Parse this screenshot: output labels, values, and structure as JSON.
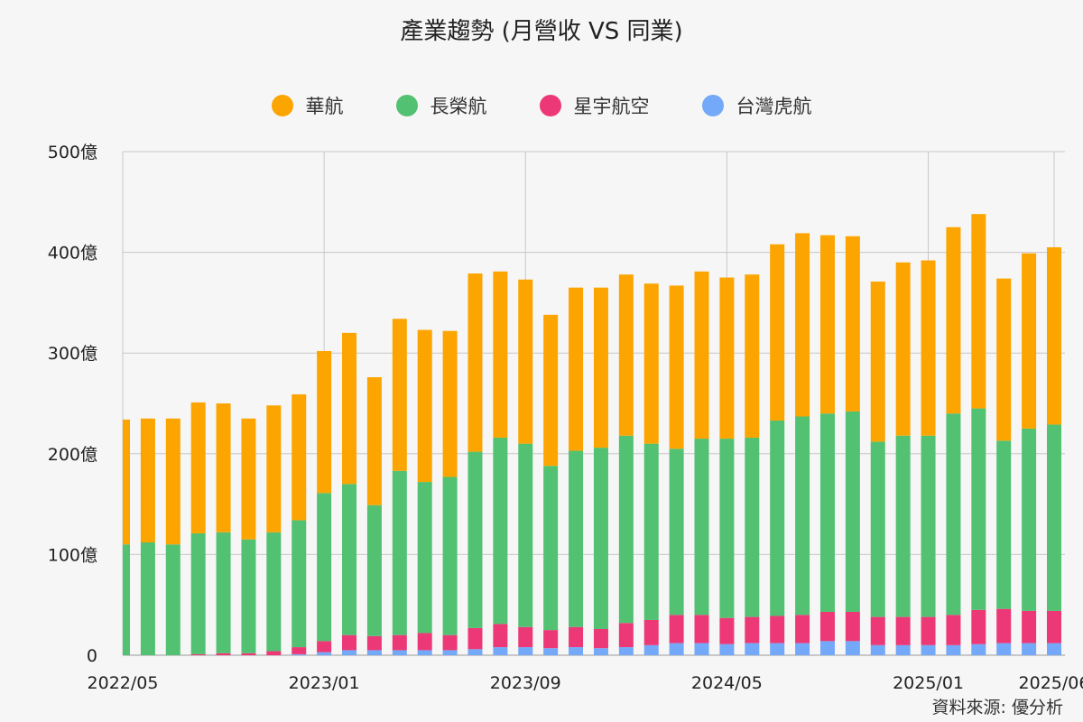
{
  "title": "產業趨勢 (月營收 VS 同業)",
  "source": "資料來源: 優分析",
  "chart_data": {
    "type": "bar",
    "stacked": true,
    "title": "產業趨勢 (月營收 VS 同業)",
    "xlabel": "",
    "ylabel": "",
    "ylim": [
      0,
      500
    ],
    "y_ticks": [
      0,
      100,
      200,
      300,
      400,
      500
    ],
    "y_tick_labels": [
      "0",
      "100億",
      "200億",
      "300億",
      "400億",
      "500億"
    ],
    "x_tick_labels": [
      "2022/05",
      "2023/01",
      "2023/09",
      "2024/05",
      "2025/01",
      "2025/06"
    ],
    "grid": true,
    "legend_position": "top",
    "categories": [
      "2022/05",
      "2022/06",
      "2022/07",
      "2022/08",
      "2022/09",
      "2022/10",
      "2022/11",
      "2022/12",
      "2023/01",
      "2023/02",
      "2023/03",
      "2023/04",
      "2023/05",
      "2023/06",
      "2023/07",
      "2023/08",
      "2023/09",
      "2023/10",
      "2023/11",
      "2023/12",
      "2024/01",
      "2024/02",
      "2024/03",
      "2024/04",
      "2024/05",
      "2024/06",
      "2024/07",
      "2024/08",
      "2024/09",
      "2024/10",
      "2024/11",
      "2024/12",
      "2025/01",
      "2025/02",
      "2025/03",
      "2025/04",
      "2025/05",
      "2025/06"
    ],
    "series": [
      {
        "name": "台灣虎航",
        "color": "#74a8f8",
        "values": [
          0,
          0,
          0,
          0,
          0,
          0,
          0,
          1,
          3,
          5,
          5,
          5,
          5,
          5,
          6,
          8,
          8,
          7,
          8,
          7,
          8,
          10,
          12,
          12,
          11,
          12,
          12,
          12,
          14,
          14,
          10,
          10,
          10,
          10,
          11,
          12,
          12,
          12
        ]
      },
      {
        "name": "星宇航空",
        "color": "#ec3876",
        "values": [
          0,
          0,
          0,
          1,
          2,
          2,
          4,
          7,
          11,
          15,
          14,
          15,
          17,
          15,
          21,
          23,
          20,
          18,
          20,
          19,
          24,
          25,
          28,
          28,
          26,
          26,
          27,
          28,
          29,
          29,
          28,
          28,
          28,
          30,
          34,
          34,
          32,
          32
        ]
      },
      {
        "name": "長榮航",
        "color": "#52c172",
        "values": [
          110,
          112,
          110,
          120,
          120,
          113,
          118,
          126,
          147,
          150,
          130,
          163,
          150,
          157,
          175,
          185,
          182,
          163,
          175,
          180,
          186,
          175,
          165,
          175,
          178,
          178,
          194,
          197,
          197,
          199,
          174,
          180,
          180,
          200,
          200,
          167,
          181,
          185
        ]
      },
      {
        "name": "華航",
        "color": "#fca500",
        "values": [
          124,
          123,
          125,
          130,
          128,
          120,
          126,
          125,
          141,
          150,
          127,
          151,
          151,
          145,
          177,
          165,
          163,
          150,
          162,
          159,
          160,
          159,
          162,
          166,
          160,
          162,
          175,
          182,
          177,
          174,
          159,
          172,
          174,
          185,
          193,
          161,
          174,
          176
        ]
      }
    ]
  }
}
